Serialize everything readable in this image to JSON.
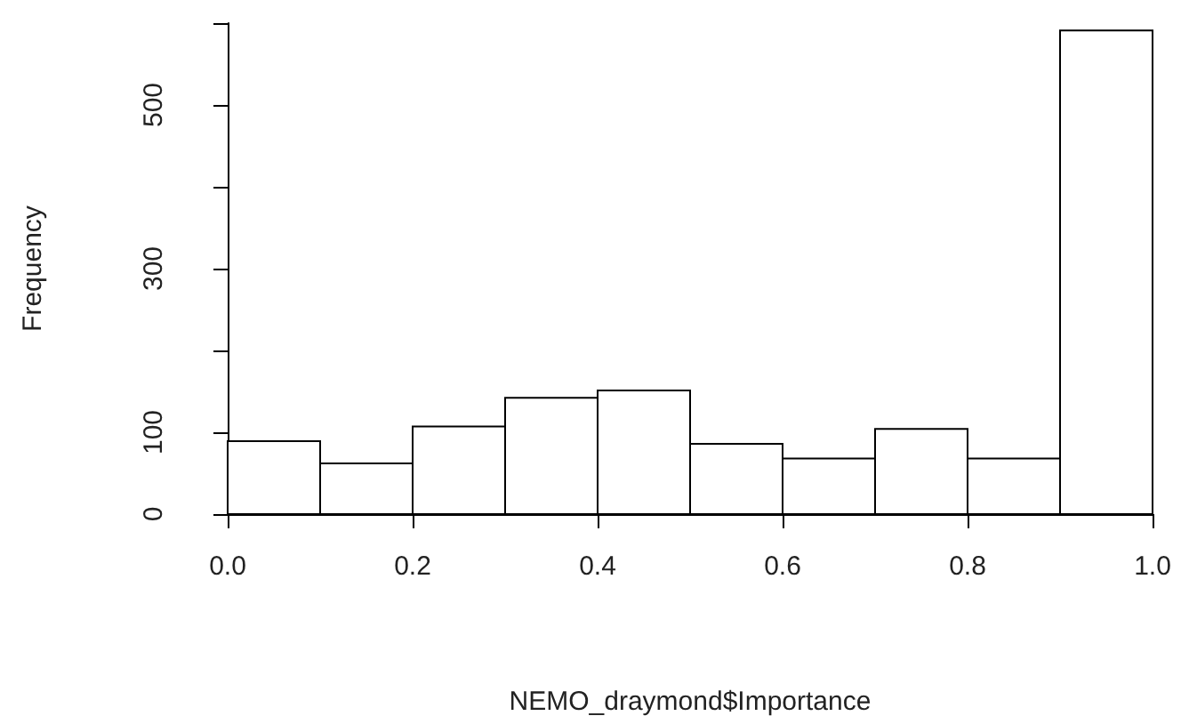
{
  "chart_data": {
    "type": "histogram",
    "xlabel": "NEMO_draymond$Importance",
    "ylabel": "Frequency",
    "bins": [
      0,
      0.1,
      0.2,
      0.3,
      0.4,
      0.5,
      0.6,
      0.7,
      0.8,
      0.9,
      1.0
    ],
    "values": [
      89,
      62,
      107,
      142,
      151,
      86,
      68,
      104,
      68,
      591
    ],
    "color": "#ffffff",
    "xlim": [
      0,
      1
    ],
    "xticks": [
      {
        "value": 0,
        "label": "0.0"
      },
      {
        "value": 0.2,
        "label": "0.2"
      },
      {
        "value": 0.4,
        "label": "0.4"
      },
      {
        "value": 0.6,
        "label": "0.6"
      },
      {
        "value": 0.8,
        "label": "0.8"
      },
      {
        "value": 1,
        "label": "1.0"
      }
    ],
    "ylim": [
      0,
      600
    ],
    "yticks": [
      0,
      100,
      {
        "value": 200,
        "label": null
      },
      300,
      {
        "value": 400,
        "label": null
      },
      500,
      {
        "value": 600,
        "label": null
      }
    ],
    "grid": false
  }
}
